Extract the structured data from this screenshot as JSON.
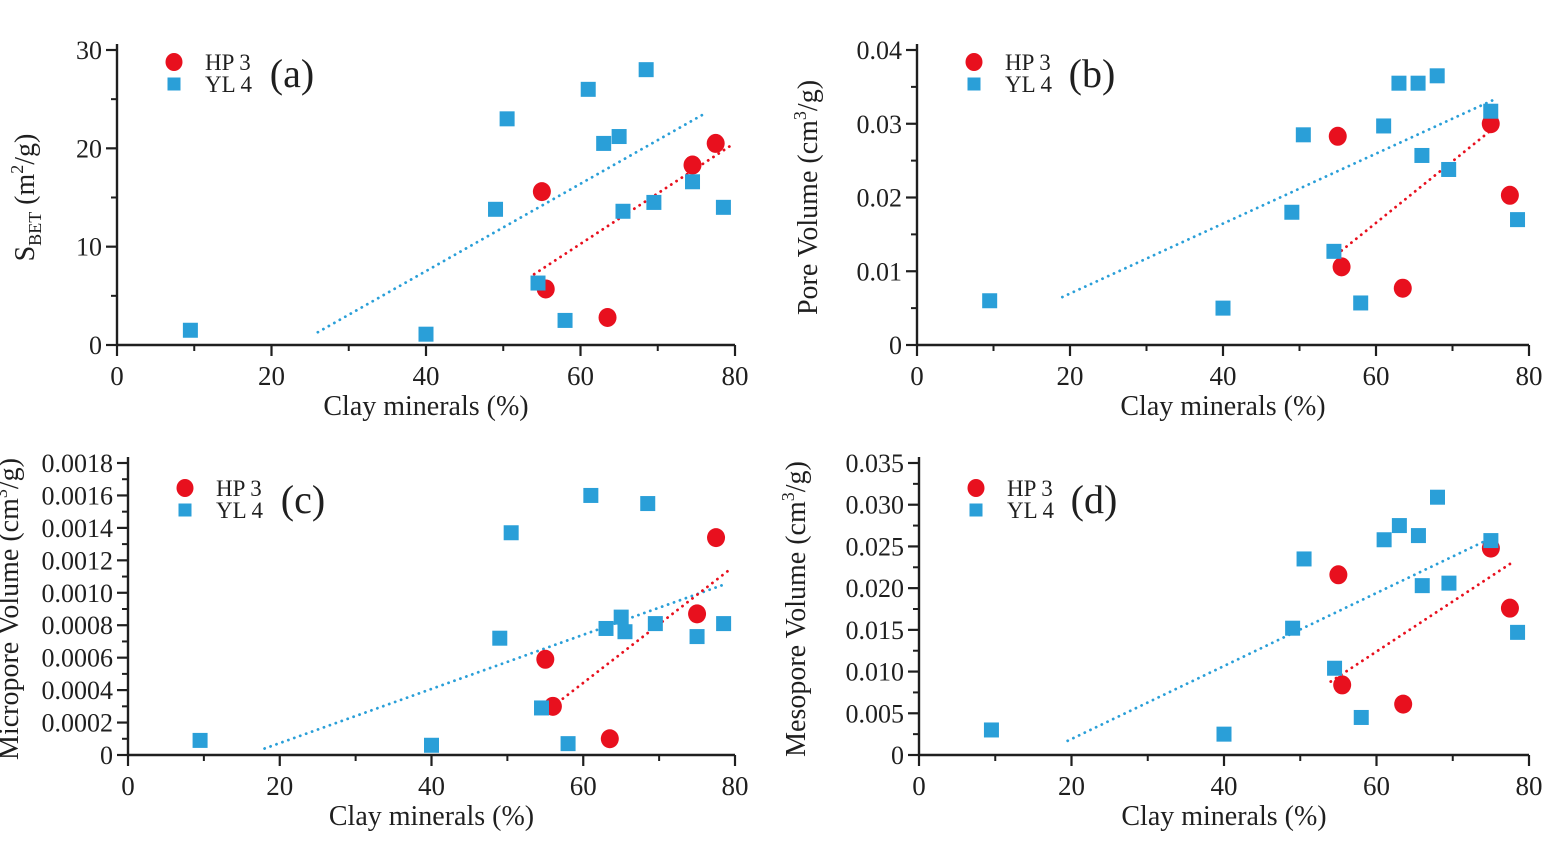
{
  "legend": {
    "position": "top-left",
    "items": [
      {
        "label": "HP 3",
        "marker": "circle",
        "color": "#e8101e"
      },
      {
        "label": "YL 4",
        "marker": "square",
        "color": "#2a9fd8"
      }
    ]
  },
  "colors": {
    "hp3": "#e8101e",
    "yl4": "#2a9fd8",
    "axis": "#1f1f1f",
    "background": "#ffffff"
  },
  "chart_data": [
    {
      "type": "scatter",
      "panel_tag": "(a)",
      "xlabel": "Clay minerals (%)",
      "ylabel_parts": [
        [
          "S",
          ""
        ],
        [
          "BET",
          "sub"
        ],
        [
          " (m",
          ""
        ],
        [
          "2",
          "sup"
        ],
        [
          "/g)",
          ""
        ]
      ],
      "xlim": [
        0,
        80
      ],
      "xticks": [
        0,
        20,
        40,
        60,
        80
      ],
      "xtick_labels": [
        "0",
        "20",
        "40",
        "60",
        "80"
      ],
      "x_minor_ticks": [
        10,
        30,
        50,
        70
      ],
      "ylim": [
        0,
        30
      ],
      "yticks": [
        0,
        10,
        20,
        30
      ],
      "ytick_labels": [
        "0",
        "10",
        "20",
        "30"
      ],
      "grid": false,
      "legend_position": "top-left",
      "series": [
        {
          "name": "HP 3",
          "marker": "circle",
          "color": "#e8101e",
          "points": [
            [
              55,
              15.6
            ],
            [
              55.5,
              5.7
            ],
            [
              63.5,
              2.8
            ],
            [
              74.5,
              18.3
            ],
            [
              77.5,
              20.5
            ]
          ]
        },
        {
          "name": "YL 4",
          "marker": "square",
          "color": "#2a9fd8",
          "points": [
            [
              9.5,
              1.5
            ],
            [
              40,
              1.1
            ],
            [
              49,
              13.8
            ],
            [
              50.5,
              23.0
            ],
            [
              54.5,
              6.3
            ],
            [
              58,
              2.5
            ],
            [
              61,
              26.0
            ],
            [
              63,
              20.5
            ],
            [
              65,
              21.2
            ],
            [
              65.5,
              13.6
            ],
            [
              68.5,
              28.0
            ],
            [
              69.5,
              14.5
            ],
            [
              74.5,
              16.6
            ],
            [
              78.5,
              14.0
            ]
          ]
        }
      ],
      "trendlines": [
        {
          "series": "YL 4",
          "color": "#2a9fd8",
          "from": [
            26,
            1.3
          ],
          "to": [
            76,
            23.5
          ]
        },
        {
          "series": "HP 3",
          "color": "#e8101e",
          "from": [
            54,
            7.2
          ],
          "to": [
            79.5,
            20.3
          ]
        }
      ]
    },
    {
      "type": "scatter",
      "panel_tag": "(b)",
      "xlabel": "Clay minerals (%)",
      "ylabel_parts": [
        [
          "Pore Volume (cm",
          ""
        ],
        [
          "3",
          "sup"
        ],
        [
          "/g)",
          ""
        ]
      ],
      "xlim": [
        0,
        80
      ],
      "xticks": [
        0,
        20,
        40,
        60,
        80
      ],
      "xtick_labels": [
        "0",
        "20",
        "40",
        "60",
        "80"
      ],
      "x_minor_ticks": [
        10,
        30,
        50,
        70
      ],
      "ylim": [
        0,
        0.04
      ],
      "yticks": [
        0,
        0.01,
        0.02,
        0.03,
        0.04
      ],
      "ytick_labels": [
        "0",
        "0.01",
        "0.02",
        "0.03",
        "0.04"
      ],
      "grid": false,
      "legend_position": "top-left",
      "series": [
        {
          "name": "HP 3",
          "marker": "circle",
          "color": "#e8101e",
          "points": [
            [
              55,
              0.0283
            ],
            [
              55.5,
              0.0106
            ],
            [
              63.5,
              0.0077
            ],
            [
              75,
              0.03
            ],
            [
              77.5,
              0.0203
            ]
          ]
        },
        {
          "name": "YL 4",
          "marker": "square",
          "color": "#2a9fd8",
          "points": [
            [
              9.5,
              0.006
            ],
            [
              40,
              0.005
            ],
            [
              49,
              0.018
            ],
            [
              50.5,
              0.0285
            ],
            [
              54.5,
              0.0127
            ],
            [
              58,
              0.0057
            ],
            [
              61,
              0.0297
            ],
            [
              63,
              0.0355
            ],
            [
              65.5,
              0.0355
            ],
            [
              66,
              0.0257
            ],
            [
              68,
              0.0365
            ],
            [
              69.5,
              0.0238
            ],
            [
              75,
              0.0317
            ],
            [
              78.5,
              0.017
            ]
          ]
        }
      ],
      "trendlines": [
        {
          "series": "YL 4",
          "color": "#2a9fd8",
          "from": [
            19,
            0.0065
          ],
          "to": [
            75.5,
            0.0333
          ]
        },
        {
          "series": "HP 3",
          "color": "#e8101e",
          "from": [
            55.5,
            0.0128
          ],
          "to": [
            75.5,
            0.0295
          ]
        }
      ]
    },
    {
      "type": "scatter",
      "panel_tag": "(c)",
      "xlabel": "Clay minerals (%)",
      "ylabel_parts": [
        [
          "Micropore Volume (cm",
          ""
        ],
        [
          "3",
          "sup"
        ],
        [
          "/g)",
          ""
        ]
      ],
      "xlim": [
        0,
        80
      ],
      "xticks": [
        0,
        20,
        40,
        60,
        80
      ],
      "xtick_labels": [
        "0",
        "20",
        "40",
        "60",
        "80"
      ],
      "x_minor_ticks": [
        10,
        30,
        50,
        70
      ],
      "ylim": [
        0,
        0.0018
      ],
      "yticks": [
        0,
        0.0002,
        0.0004,
        0.0006,
        0.0008,
        0.001,
        0.0012,
        0.0014,
        0.0016,
        0.0018
      ],
      "ytick_labels": [
        "0",
        "0.0002",
        "0.0004",
        "0.0006",
        "0.0008",
        "0.0010",
        "0.0012",
        "0.0014",
        "0.0016",
        "0.0018"
      ],
      "grid": false,
      "legend_position": "top-left",
      "series": [
        {
          "name": "HP 3",
          "marker": "circle",
          "color": "#e8101e",
          "points": [
            [
              55,
              0.00059
            ],
            [
              56,
              0.0003
            ],
            [
              63.5,
              0.0001
            ],
            [
              75,
              0.00087
            ],
            [
              77.5,
              0.00134
            ]
          ]
        },
        {
          "name": "YL 4",
          "marker": "square",
          "color": "#2a9fd8",
          "points": [
            [
              9.5,
              9e-05
            ],
            [
              40,
              6e-05
            ],
            [
              49,
              0.00072
            ],
            [
              50.5,
              0.00137
            ],
            [
              54.5,
              0.00029
            ],
            [
              58,
              7e-05
            ],
            [
              61,
              0.0016
            ],
            [
              63,
              0.00078
            ],
            [
              65,
              0.00085
            ],
            [
              65.5,
              0.00076
            ],
            [
              68.5,
              0.00155
            ],
            [
              69.5,
              0.00081
            ],
            [
              75,
              0.00073
            ],
            [
              78.5,
              0.00081
            ]
          ]
        }
      ],
      "trendlines": [
        {
          "series": "YL 4",
          "color": "#2a9fd8",
          "from": [
            18,
            4e-05
          ],
          "to": [
            78.5,
            0.00105
          ]
        },
        {
          "series": "HP 3",
          "color": "#e8101e",
          "from": [
            56,
            0.0003
          ],
          "to": [
            79.5,
            0.00115
          ]
        }
      ]
    },
    {
      "type": "scatter",
      "panel_tag": "(d)",
      "xlabel": "Clay minerals (%)",
      "ylabel_parts": [
        [
          "Mesopore Volume (cm",
          ""
        ],
        [
          "3",
          "sup"
        ],
        [
          "/g)",
          ""
        ]
      ],
      "xlim": [
        0,
        80
      ],
      "xticks": [
        0,
        20,
        40,
        60,
        80
      ],
      "xtick_labels": [
        "0",
        "20",
        "40",
        "60",
        "80"
      ],
      "x_minor_ticks": [
        10,
        30,
        50,
        70
      ],
      "ylim": [
        0,
        0.035
      ],
      "yticks": [
        0,
        0.005,
        0.01,
        0.015,
        0.02,
        0.025,
        0.03,
        0.035
      ],
      "ytick_labels": [
        "0",
        "0.005",
        "0.010",
        "0.015",
        "0.020",
        "0.025",
        "0.030",
        "0.035"
      ],
      "grid": false,
      "legend_position": "top-left",
      "series": [
        {
          "name": "HP 3",
          "marker": "circle",
          "color": "#e8101e",
          "points": [
            [
              55,
              0.0216
            ],
            [
              55.5,
              0.0084
            ],
            [
              63.5,
              0.0061
            ],
            [
              75,
              0.0248
            ],
            [
              77.5,
              0.0176
            ]
          ]
        },
        {
          "name": "YL 4",
          "marker": "square",
          "color": "#2a9fd8",
          "points": [
            [
              9.5,
              0.003
            ],
            [
              40,
              0.0025
            ],
            [
              49,
              0.0152
            ],
            [
              50.5,
              0.0235
            ],
            [
              54.5,
              0.0104
            ],
            [
              58,
              0.0045
            ],
            [
              61,
              0.0258
            ],
            [
              63,
              0.0275
            ],
            [
              65.5,
              0.0263
            ],
            [
              66,
              0.0203
            ],
            [
              68,
              0.0309
            ],
            [
              69.5,
              0.0206
            ],
            [
              75,
              0.0257
            ],
            [
              78.5,
              0.0147
            ]
          ]
        }
      ],
      "trendlines": [
        {
          "series": "YL 4",
          "color": "#2a9fd8",
          "from": [
            19.5,
            0.0017
          ],
          "to": [
            75.5,
            0.0262
          ]
        },
        {
          "series": "HP 3",
          "color": "#e8101e",
          "from": [
            54,
            0.0088
          ],
          "to": [
            78,
            0.0232
          ]
        }
      ]
    }
  ]
}
